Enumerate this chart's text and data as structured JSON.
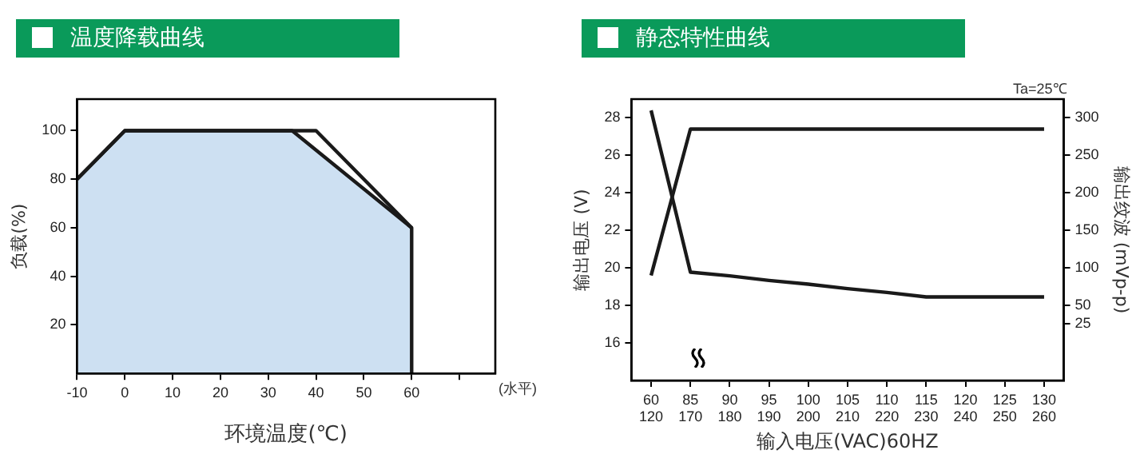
{
  "chart_data": [
    {
      "type": "line",
      "title": "温度降载曲线",
      "xlabel": "环境温度(℃)",
      "ylabel": "负载(%)",
      "annotations": [
        "(水平)"
      ],
      "xlim": [
        -10,
        77.5
      ],
      "xticks": [
        -10,
        0,
        10,
        20,
        30,
        40,
        50,
        60,
        {
          "value": 70,
          "label": null
        }
      ],
      "ylim": [
        0,
        113
      ],
      "yticks": [
        20,
        40,
        60,
        80,
        100
      ],
      "legend": false,
      "marker": "none",
      "series": [
        {
          "type": "area",
          "color": "#cde0f2",
          "x": [
            -10,
            0,
            35,
            60,
            60
          ],
          "values": [
            80,
            100,
            100,
            60,
            0
          ]
        },
        {
          "color": "#1a1a1a",
          "x": [
            -10,
            0,
            40,
            60
          ],
          "values": [
            80,
            100,
            100,
            60
          ]
        }
      ]
    },
    {
      "type": "line",
      "title": "静态特性曲线",
      "xlabel": "输入电压(VAC)60HZ",
      "ylabel": "输出电压 (V)",
      "y2label": "输出纹波 (mVp-p)",
      "annotations": [
        "Ta=25℃"
      ],
      "categories": [
        "60\n120",
        "85\n170",
        "90\n180",
        "95\n190",
        "100\n200",
        "105\n210",
        "110\n220",
        "115\n230",
        "120\n240",
        "125\n250",
        "130\n260"
      ],
      "ylim": [
        14,
        29
      ],
      "yticks": [
        16,
        18,
        20,
        22,
        24,
        26,
        28
      ],
      "y2lim": [
        -50,
        324
      ],
      "y2ticks": [
        25,
        50,
        100,
        150,
        200,
        250,
        300
      ],
      "legend": false,
      "marker": "none",
      "series": [
        {
          "color": "#1a1a1a",
          "values": [
            19.6,
            27.4,
            27.4,
            27.4,
            27.4,
            27.4,
            27.4,
            27.4,
            27.4,
            27.4,
            27.4
          ]
        },
        {
          "color": "#1a1a1a",
          "axis": "y2",
          "values": [
            309,
            94,
            89,
            83,
            78,
            72,
            67,
            61,
            61,
            61,
            61
          ]
        }
      ]
    }
  ]
}
